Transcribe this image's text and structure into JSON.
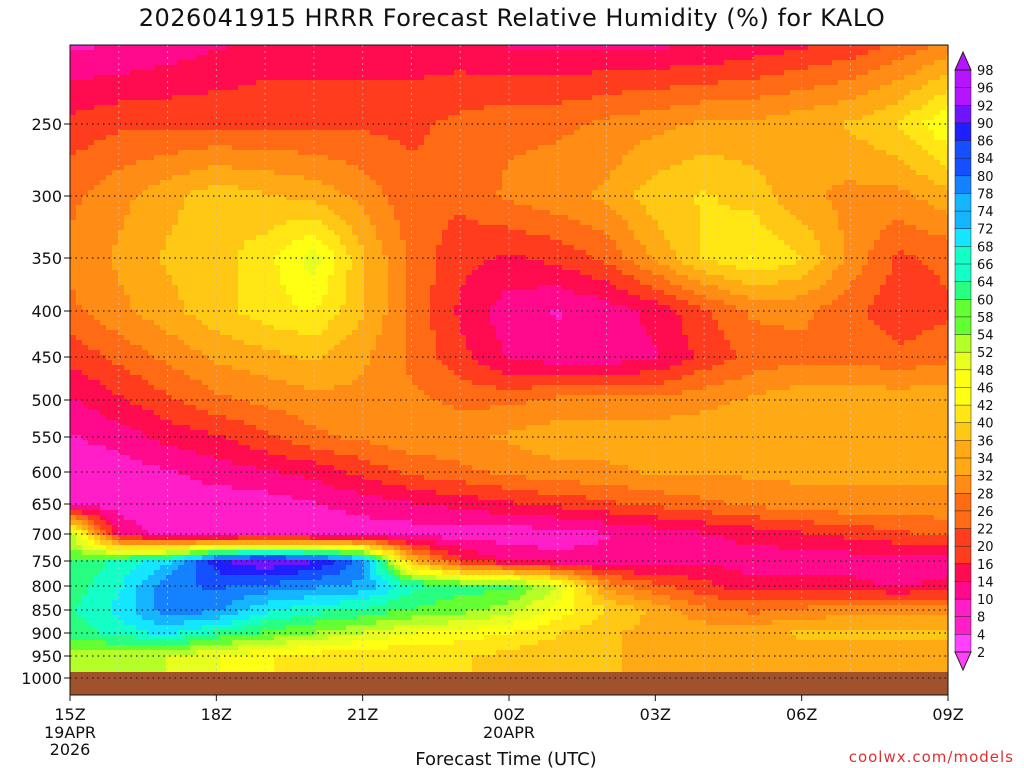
{
  "title": "2026041915 HRRR Forecast Relative Humidity (%) for KALO",
  "credit": "coolwx.com/models",
  "chart_data": {
    "type": "heatmap",
    "title": "2026041915 HRRR Forecast Relative Humidity (%) for KALO",
    "xlabel": "Forecast Time (UTC)",
    "ylabel": "",
    "x_hours": [
      0,
      1,
      2,
      3,
      4,
      5,
      6,
      7,
      8,
      9,
      10,
      11,
      12,
      13,
      14,
      15,
      16,
      17,
      18
    ],
    "x_ticks": [
      {
        "hour": 0,
        "label": "15Z",
        "sub": [
          "19APR",
          "2026"
        ]
      },
      {
        "hour": 3,
        "label": "18Z",
        "sub": []
      },
      {
        "hour": 6,
        "label": "21Z",
        "sub": []
      },
      {
        "hour": 9,
        "label": "00Z",
        "sub": [
          "20APR"
        ]
      },
      {
        "hour": 12,
        "label": "03Z",
        "sub": []
      },
      {
        "hour": 15,
        "label": "06Z",
        "sub": []
      },
      {
        "hour": 18,
        "label": "09Z",
        "sub": []
      }
    ],
    "y_ticks": [
      250,
      300,
      350,
      400,
      450,
      500,
      550,
      600,
      650,
      700,
      750,
      800,
      850,
      900,
      950,
      1000
    ],
    "ylim_hpa": [
      200,
      1000
    ],
    "grid": true,
    "colorbar_levels": [
      2,
      4,
      8,
      10,
      14,
      16,
      20,
      22,
      26,
      28,
      32,
      34,
      36,
      40,
      42,
      46,
      48,
      52,
      54,
      58,
      60,
      64,
      66,
      68,
      72,
      74,
      78,
      80,
      84,
      86,
      90,
      92,
      96,
      98
    ],
    "levels_hpa": [
      200,
      250,
      300,
      350,
      400,
      450,
      500,
      550,
      600,
      650,
      700,
      750,
      800,
      850,
      900,
      950,
      1000
    ],
    "rh": [
      [
        10,
        10,
        12,
        14,
        16,
        16,
        16,
        16,
        16,
        14,
        14,
        14,
        14,
        14,
        16,
        18,
        20,
        24,
        28
      ],
      [
        20,
        22,
        22,
        22,
        22,
        22,
        22,
        22,
        24,
        26,
        26,
        28,
        30,
        32,
        32,
        34,
        36,
        40,
        48
      ],
      [
        26,
        30,
        34,
        38,
        36,
        34,
        30,
        24,
        24,
        28,
        30,
        32,
        38,
        40,
        38,
        32,
        30,
        30,
        34
      ],
      [
        28,
        32,
        36,
        38,
        42,
        50,
        36,
        26,
        20,
        18,
        20,
        24,
        32,
        40,
        44,
        40,
        30,
        22,
        24
      ],
      [
        26,
        30,
        34,
        38,
        42,
        44,
        36,
        26,
        18,
        12,
        10,
        12,
        16,
        22,
        28,
        28,
        24,
        20,
        22
      ],
      [
        20,
        24,
        28,
        32,
        34,
        36,
        32,
        26,
        20,
        14,
        12,
        12,
        14,
        20,
        24,
        26,
        26,
        24,
        26
      ],
      [
        14,
        18,
        22,
        26,
        28,
        30,
        30,
        28,
        26,
        26,
        28,
        28,
        28,
        30,
        32,
        34,
        34,
        34,
        34
      ],
      [
        10,
        12,
        16,
        18,
        22,
        26,
        28,
        30,
        30,
        32,
        34,
        34,
        34,
        34,
        34,
        34,
        34,
        34,
        34
      ],
      [
        8,
        8,
        10,
        12,
        14,
        16,
        20,
        24,
        26,
        28,
        30,
        30,
        32,
        32,
        32,
        32,
        32,
        32,
        32
      ],
      [
        8,
        8,
        8,
        8,
        8,
        10,
        12,
        14,
        16,
        18,
        20,
        22,
        24,
        26,
        28,
        30,
        30,
        30,
        30
      ],
      [
        54,
        14,
        8,
        8,
        8,
        8,
        8,
        8,
        8,
        8,
        8,
        10,
        12,
        14,
        16,
        18,
        20,
        22,
        24
      ],
      [
        60,
        66,
        72,
        88,
        94,
        90,
        80,
        36,
        20,
        14,
        12,
        12,
        12,
        14,
        12,
        12,
        12,
        12,
        12
      ],
      [
        62,
        68,
        80,
        82,
        80,
        78,
        76,
        66,
        62,
        62,
        52,
        30,
        24,
        20,
        16,
        16,
        16,
        14,
        16
      ],
      [
        64,
        70,
        80,
        78,
        70,
        66,
        64,
        60,
        58,
        54,
        46,
        40,
        34,
        28,
        26,
        28,
        30,
        30,
        30
      ],
      [
        62,
        66,
        70,
        64,
        60,
        56,
        52,
        48,
        46,
        44,
        40,
        36,
        34,
        34,
        34,
        36,
        36,
        36,
        36
      ],
      [
        54,
        54,
        52,
        48,
        44,
        42,
        40,
        40,
        40,
        38,
        36,
        36,
        34,
        34,
        34,
        34,
        34,
        34,
        34
      ],
      [
        56,
        54,
        52,
        48,
        44,
        42,
        40,
        40,
        40,
        38,
        36,
        36,
        34,
        34,
        34,
        34,
        34,
        34,
        34
      ]
    ],
    "ground_color": "#a0522d",
    "palette": [
      "#ff40ff",
      "#ff1ec8",
      "#ff0a8c",
      "#ff0c50",
      "#ff3c1e",
      "#ff6a14",
      "#ff8c14",
      "#ffaa14",
      "#ffc814",
      "#ffe614",
      "#ffff14",
      "#e6ff1e",
      "#b4ff28",
      "#64ff32",
      "#28ff82",
      "#14ffc8",
      "#14e6ff",
      "#14b4ff",
      "#1482ff",
      "#1450ff",
      "#1e1eff",
      "#6e14ff",
      "#b414ff"
    ]
  }
}
